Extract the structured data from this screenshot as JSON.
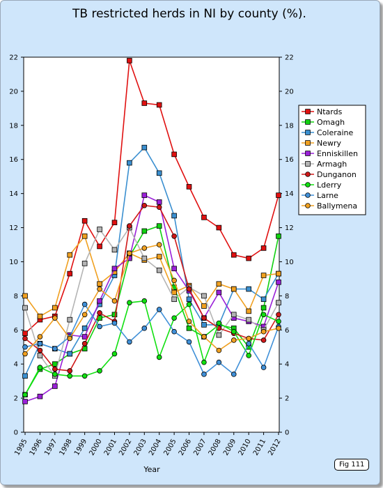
{
  "title": "TB restricted herds in NI by county (%).",
  "fig_label": "Fig 111",
  "chart_data": {
    "type": "line",
    "title": "TB restricted herds in NI by county (%).",
    "xlabel": "Year",
    "ylabel": "",
    "x": [
      "1995",
      "1996",
      "1997",
      "1998",
      "1999",
      "2000",
      "2001",
      "2002",
      "2003",
      "2004",
      "2005",
      "2006",
      "2007",
      "2008",
      "2009",
      "2010",
      "2011",
      "2012"
    ],
    "ylim": [
      0,
      22
    ],
    "yticks": [
      0,
      2,
      4,
      6,
      8,
      10,
      12,
      14,
      16,
      18,
      20,
      22
    ],
    "grid": false,
    "legend_position": "right",
    "series": [
      {
        "name": "Ntards",
        "color": "#e01010",
        "marker": "square",
        "values": [
          5.8,
          6.6,
          6.8,
          9.3,
          12.4,
          10.9,
          12.3,
          21.8,
          19.3,
          19.2,
          16.3,
          14.4,
          12.6,
          12.0,
          10.4,
          10.2,
          10.8,
          13.9
        ]
      },
      {
        "name": "Omagh",
        "color": "#10d010",
        "marker": "square",
        "values": [
          2.2,
          3.7,
          4.0,
          4.6,
          4.9,
          6.7,
          6.9,
          10.3,
          11.8,
          12.1,
          8.5,
          6.1,
          5.6,
          6.3,
          6.1,
          5.0,
          7.3,
          11.5
        ]
      },
      {
        "name": "Coleraine",
        "color": "#3a8fd0",
        "marker": "square",
        "values": [
          3.3,
          5.2,
          4.9,
          4.6,
          6.1,
          7.5,
          9.2,
          15.8,
          16.7,
          15.2,
          12.7,
          7.8,
          6.3,
          6.3,
          8.4,
          8.4,
          7.8,
          9.3
        ]
      },
      {
        "name": "Newry",
        "color": "#f0a020",
        "marker": "square",
        "values": [
          8.0,
          6.8,
          7.3,
          10.4,
          11.5,
          8.7,
          9.4,
          10.5,
          10.1,
          10.3,
          8.2,
          8.6,
          7.4,
          8.7,
          8.4,
          7.1,
          9.2,
          9.3
        ]
      },
      {
        "name": "Enniskillen",
        "color": "#9a20d8",
        "marker": "square",
        "values": [
          1.8,
          2.1,
          2.7,
          5.7,
          5.6,
          7.7,
          9.6,
          10.2,
          13.9,
          13.5,
          9.6,
          8.3,
          6.7,
          8.2,
          6.7,
          6.5,
          6.2,
          8.8
        ]
      },
      {
        "name": "Armagh",
        "color": "#b4b4b4",
        "marker": "square",
        "values": [
          7.3,
          4.5,
          3.3,
          6.6,
          9.9,
          11.9,
          10.7,
          12.0,
          10.2,
          9.5,
          7.8,
          8.5,
          8.0,
          5.7,
          6.9,
          6.6,
          6.0,
          7.6
        ]
      },
      {
        "name": "Dunganon",
        "color": "#d01818",
        "marker": "circle",
        "values": [
          5.5,
          4.8,
          3.7,
          3.6,
          5.2,
          7.0,
          6.5,
          12.1,
          13.3,
          13.2,
          11.5,
          8.4,
          6.7,
          6.1,
          5.8,
          5.5,
          5.4,
          6.9
        ]
      },
      {
        "name": "Lderry",
        "color": "#10e010",
        "marker": "circle",
        "values": [
          2.2,
          3.8,
          3.4,
          3.3,
          3.3,
          3.6,
          4.6,
          7.6,
          7.7,
          4.4,
          6.7,
          7.5,
          4.1,
          6.4,
          5.9,
          4.5,
          6.9,
          6.5
        ]
      },
      {
        "name": "Larne",
        "color": "#4090d8",
        "marker": "circle",
        "values": [
          5.0,
          5.2,
          4.9,
          5.6,
          7.5,
          6.2,
          6.4,
          5.3,
          6.1,
          7.2,
          5.9,
          5.3,
          3.4,
          4.1,
          3.4,
          5.2,
          3.8,
          6.2
        ]
      },
      {
        "name": "Ballymena",
        "color": "#f0a020",
        "marker": "circle",
        "values": [
          4.6,
          5.6,
          6.7,
          5.5,
          6.9,
          8.4,
          7.7,
          10.5,
          10.8,
          11.0,
          8.9,
          6.5,
          5.6,
          4.8,
          5.4,
          5.5,
          5.9,
          6.1
        ]
      }
    ]
  }
}
